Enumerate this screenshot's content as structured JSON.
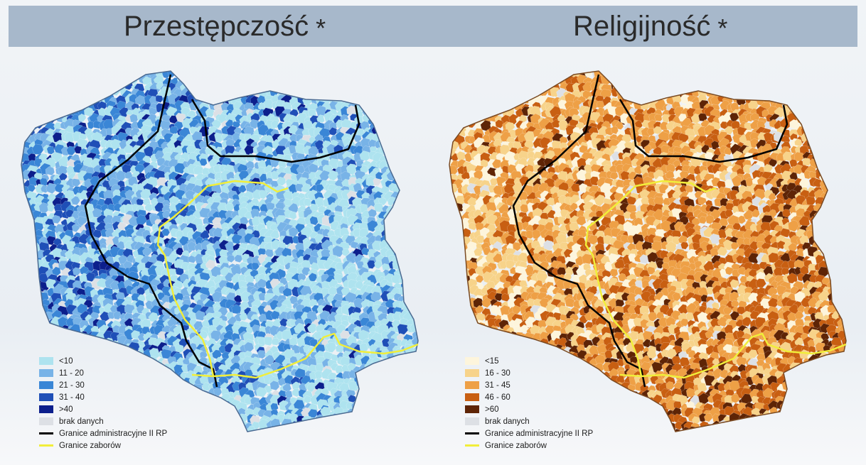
{
  "titles": {
    "left": "Przestępczość",
    "right": "Religijność",
    "marker": "*"
  },
  "maps": [
    {
      "id": "crime",
      "palette": [
        "#aee3ef",
        "#78b3e7",
        "#3a86d6",
        "#1f4fb7",
        "#0c1f8c"
      ],
      "nodata_color": "#dde0e5",
      "legend": [
        {
          "label": "<10",
          "color": "#aee3ef"
        },
        {
          "label": "11 - 20",
          "color": "#78b3e7"
        },
        {
          "label": "21 - 30",
          "color": "#3a86d6"
        },
        {
          "label": "31 - 40",
          "color": "#1f4fb7"
        },
        {
          "label": ">40",
          "color": "#0c1f8c"
        },
        {
          "label": "brak danych",
          "color": "#dde0e5"
        },
        {
          "label": "Granice administracyjne II RP",
          "line": "#000000"
        },
        {
          "label": "Granice zaborów",
          "line": "#f1ee3a"
        }
      ]
    },
    {
      "id": "religion",
      "palette": [
        "#fdf5dc",
        "#f7d38a",
        "#eea046",
        "#c85f12",
        "#5e2406"
      ],
      "nodata_color": "#dde0e5",
      "legend": [
        {
          "label": "<15",
          "color": "#fdf5dc"
        },
        {
          "label": "16 - 30",
          "color": "#f7d38a"
        },
        {
          "label": "31 - 45",
          "color": "#eea046"
        },
        {
          "label": "46 - 60",
          "color": "#c85f12"
        },
        {
          "label": ">60",
          "color": "#5e2406"
        },
        {
          "label": "brak danych",
          "color": "#dde0e5"
        },
        {
          "label": "Granice administracyjne II RP",
          "line": "#000000"
        },
        {
          "label": "Granice zaborów",
          "line": "#f1ee3a"
        }
      ]
    }
  ]
}
